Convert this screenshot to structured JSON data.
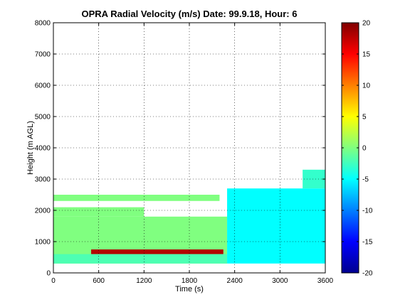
{
  "chart_data": {
    "type": "heatmap",
    "title": "OPRA Radial Velocity (m/s)  Date: 99.9.18, Hour: 6",
    "xlabel": "Time (s)",
    "ylabel": "Height (m AGL)",
    "xlim": [
      0,
      3600
    ],
    "ylim": [
      0,
      8000
    ],
    "xticks": [
      "0",
      "600",
      "1200",
      "1800",
      "2400",
      "3000",
      "3600"
    ],
    "yticks": [
      "0",
      "1000",
      "2000",
      "3000",
      "4000",
      "5000",
      "6000",
      "7000",
      "8000"
    ],
    "grid": true,
    "colorbar": {
      "range": [
        -20,
        20
      ],
      "ticks": [
        "20",
        "15",
        "10",
        "5",
        "0",
        "-5",
        "-10",
        "-15",
        "-20"
      ],
      "colormap": "jet"
    },
    "regions": [
      {
        "name": "lower layer",
        "x": [
          0,
          2300
        ],
        "y": [
          300,
          1800
        ],
        "value": 0
      },
      {
        "name": "mid layer",
        "x": [
          0,
          1200
        ],
        "y": [
          1800,
          2100
        ],
        "value": 0
      },
      {
        "name": "upper patches",
        "x": [
          0,
          2200
        ],
        "y": [
          2300,
          2500
        ],
        "value": 0
      },
      {
        "name": "strong return band",
        "x": [
          500,
          2250
        ],
        "y": [
          600,
          750
        ],
        "value": 18
      },
      {
        "name": "lowest band",
        "x": [
          0,
          2300
        ],
        "y": [
          300,
          600
        ],
        "value": -2
      },
      {
        "name": "later period",
        "x": [
          2300,
          3600
        ],
        "y": [
          300,
          2700
        ],
        "value": -5
      },
      {
        "name": "later period top",
        "x": [
          3300,
          3600
        ],
        "y": [
          2700,
          3300
        ],
        "value": -3
      }
    ]
  }
}
